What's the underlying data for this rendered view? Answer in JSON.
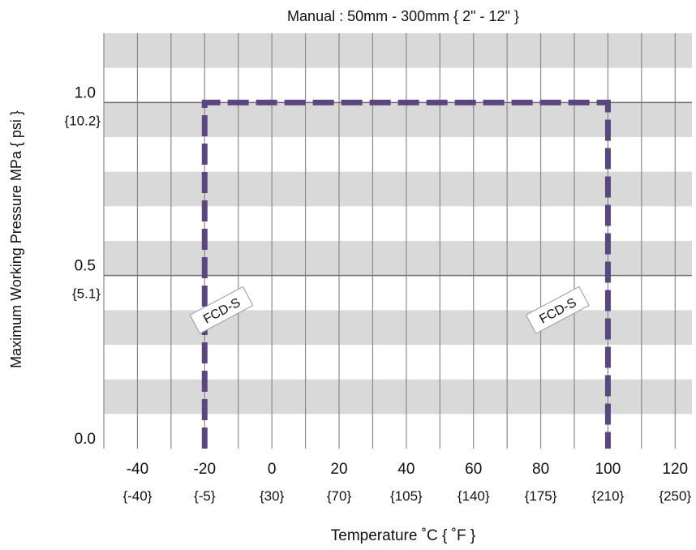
{
  "chart_data": {
    "type": "line",
    "title": "Manual : 50mm - 300mm { 2\" - 12\" }",
    "xlabel": "Temperature ˚C { ˚F }",
    "ylabel": "Maximum Working Pressure MPa { psi }",
    "xlim": [
      -50,
      125
    ],
    "ylim": [
      0,
      1.2
    ],
    "x_ticks": [
      {
        "value": -40,
        "label": "-40",
        "sub": "{-40}"
      },
      {
        "value": -20,
        "label": "-20",
        "sub": "{-5}"
      },
      {
        "value": 0,
        "label": "0",
        "sub": "{30}"
      },
      {
        "value": 20,
        "label": "20",
        "sub": "{70}"
      },
      {
        "value": 40,
        "label": "40",
        "sub": "{105}"
      },
      {
        "value": 60,
        "label": "60",
        "sub": "{140}"
      },
      {
        "value": 80,
        "label": "80",
        "sub": "{175}"
      },
      {
        "value": 100,
        "label": "100",
        "sub": "{210}"
      },
      {
        "value": 120,
        "label": "120",
        "sub": "{250}"
      }
    ],
    "y_ticks": [
      {
        "value": 0.0,
        "label": "0.0",
        "sub": ""
      },
      {
        "value": 0.5,
        "label": "0.5",
        "sub": "{5.1}"
      },
      {
        "value": 1.0,
        "label": "1.0",
        "sub": "{10.2}"
      }
    ],
    "grid": true,
    "series": [
      {
        "points": [
          [
            -20,
            0.0
          ],
          [
            -20,
            1.0
          ],
          [
            100,
            1.0
          ],
          [
            100,
            0.0
          ]
        ],
        "color": "#5b4680",
        "dashed": true
      }
    ],
    "annotations": [
      {
        "text": "FCD-S",
        "x": -15,
        "y": 0.4
      },
      {
        "text": "FCD-S",
        "x": 85,
        "y": 0.4
      }
    ]
  }
}
